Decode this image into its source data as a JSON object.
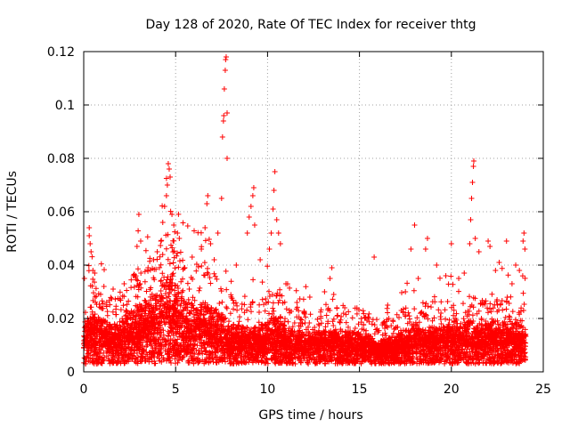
{
  "chart_data": {
    "type": "scatter",
    "title": "Day 128 of 2020, Rate Of TEC Index for receiver thtg",
    "xlabel": "GPS time / hours",
    "ylabel": "ROTI / TECUs",
    "xlim": [
      0,
      25
    ],
    "ylim": [
      0,
      0.12
    ],
    "xticks": [
      0,
      5,
      10,
      15,
      20,
      25
    ],
    "yticks": [
      0,
      0.02,
      0.04,
      0.06,
      0.08,
      0.1,
      0.12
    ],
    "xtick_labels": [
      "0",
      "5",
      "10",
      "15",
      "20",
      "25"
    ],
    "ytick_labels": [
      "0",
      "0.02",
      "0.04",
      "0.06",
      "0.08",
      "0.1",
      "0.12"
    ],
    "grid": true,
    "marker": "plus",
    "color": "#ff0000",
    "series": [
      {
        "name": "ROTI",
        "base_profile": [
          [
            0.0,
            0.012
          ],
          [
            0.5,
            0.016
          ],
          [
            1.0,
            0.014
          ],
          [
            1.5,
            0.013
          ],
          [
            2.0,
            0.014
          ],
          [
            2.5,
            0.016
          ],
          [
            3.0,
            0.018
          ],
          [
            3.5,
            0.019
          ],
          [
            4.0,
            0.021
          ],
          [
            4.5,
            0.026
          ],
          [
            5.0,
            0.024
          ],
          [
            5.5,
            0.019
          ],
          [
            6.0,
            0.018
          ],
          [
            6.5,
            0.019
          ],
          [
            7.0,
            0.017
          ],
          [
            7.5,
            0.016
          ],
          [
            8.0,
            0.013
          ],
          [
            8.5,
            0.012
          ],
          [
            9.0,
            0.012
          ],
          [
            9.5,
            0.012
          ],
          [
            10.0,
            0.014
          ],
          [
            10.5,
            0.015
          ],
          [
            11.0,
            0.012
          ],
          [
            11.5,
            0.011
          ],
          [
            12.0,
            0.011
          ],
          [
            13.0,
            0.011
          ],
          [
            14.0,
            0.011
          ],
          [
            15.0,
            0.011
          ],
          [
            15.5,
            0.01
          ],
          [
            16.0,
            0.008
          ],
          [
            16.5,
            0.009
          ],
          [
            17.0,
            0.01
          ],
          [
            17.5,
            0.011
          ],
          [
            18.0,
            0.013
          ],
          [
            18.5,
            0.012
          ],
          [
            19.0,
            0.012
          ],
          [
            19.5,
            0.012
          ],
          [
            20.0,
            0.012
          ],
          [
            20.5,
            0.013
          ],
          [
            21.0,
            0.014
          ],
          [
            21.5,
            0.013
          ],
          [
            22.0,
            0.013
          ],
          [
            22.5,
            0.014
          ],
          [
            23.0,
            0.013
          ],
          [
            23.5,
            0.013
          ],
          [
            24.0,
            0.012
          ]
        ],
        "spikes": [
          {
            "x": 0.3,
            "y": 0.054
          },
          {
            "x": 0.3,
            "y": 0.051
          },
          {
            "x": 0.35,
            "y": 0.048
          },
          {
            "x": 0.4,
            "y": 0.045
          },
          {
            "x": 0.5,
            "y": 0.038
          },
          {
            "x": 0.6,
            "y": 0.037
          },
          {
            "x": 1.1,
            "y": 0.032
          },
          {
            "x": 1.6,
            "y": 0.031
          },
          {
            "x": 2.2,
            "y": 0.033
          },
          {
            "x": 2.7,
            "y": 0.036
          },
          {
            "x": 2.9,
            "y": 0.047
          },
          {
            "x": 3.0,
            "y": 0.059
          },
          {
            "x": 3.1,
            "y": 0.049
          },
          {
            "x": 3.5,
            "y": 0.039
          },
          {
            "x": 3.8,
            "y": 0.042
          },
          {
            "x": 4.0,
            "y": 0.045
          },
          {
            "x": 4.2,
            "y": 0.049
          },
          {
            "x": 4.3,
            "y": 0.056
          },
          {
            "x": 4.4,
            "y": 0.062
          },
          {
            "x": 4.5,
            "y": 0.066
          },
          {
            "x": 4.55,
            "y": 0.07
          },
          {
            "x": 4.6,
            "y": 0.078
          },
          {
            "x": 4.65,
            "y": 0.076
          },
          {
            "x": 4.7,
            "y": 0.073
          },
          {
            "x": 4.8,
            "y": 0.059
          },
          {
            "x": 4.9,
            "y": 0.055
          },
          {
            "x": 5.1,
            "y": 0.052
          },
          {
            "x": 5.2,
            "y": 0.05
          },
          {
            "x": 5.5,
            "y": 0.039
          },
          {
            "x": 5.9,
            "y": 0.043
          },
          {
            "x": 6.4,
            "y": 0.046
          },
          {
            "x": 6.6,
            "y": 0.054
          },
          {
            "x": 6.7,
            "y": 0.063
          },
          {
            "x": 6.75,
            "y": 0.066
          },
          {
            "x": 6.9,
            "y": 0.048
          },
          {
            "x": 7.1,
            "y": 0.042
          },
          {
            "x": 7.3,
            "y": 0.052
          },
          {
            "x": 7.5,
            "y": 0.065
          },
          {
            "x": 7.55,
            "y": 0.088
          },
          {
            "x": 7.6,
            "y": 0.094
          },
          {
            "x": 7.62,
            "y": 0.096
          },
          {
            "x": 7.65,
            "y": 0.106
          },
          {
            "x": 7.7,
            "y": 0.113
          },
          {
            "x": 7.72,
            "y": 0.117
          },
          {
            "x": 7.75,
            "y": 0.118
          },
          {
            "x": 7.8,
            "y": 0.097
          },
          {
            "x": 7.8,
            "y": 0.08
          },
          {
            "x": 8.3,
            "y": 0.04
          },
          {
            "x": 8.9,
            "y": 0.052
          },
          {
            "x": 9.0,
            "y": 0.058
          },
          {
            "x": 9.1,
            "y": 0.062
          },
          {
            "x": 9.2,
            "y": 0.066
          },
          {
            "x": 9.25,
            "y": 0.069
          },
          {
            "x": 9.3,
            "y": 0.055
          },
          {
            "x": 9.6,
            "y": 0.042
          },
          {
            "x": 10.1,
            "y": 0.046
          },
          {
            "x": 10.2,
            "y": 0.052
          },
          {
            "x": 10.3,
            "y": 0.061
          },
          {
            "x": 10.35,
            "y": 0.068
          },
          {
            "x": 10.4,
            "y": 0.075
          },
          {
            "x": 10.5,
            "y": 0.057
          },
          {
            "x": 10.6,
            "y": 0.052
          },
          {
            "x": 10.7,
            "y": 0.048
          },
          {
            "x": 11.0,
            "y": 0.033
          },
          {
            "x": 11.6,
            "y": 0.026
          },
          {
            "x": 12.3,
            "y": 0.028
          },
          {
            "x": 13.1,
            "y": 0.03
          },
          {
            "x": 13.4,
            "y": 0.035
          },
          {
            "x": 13.5,
            "y": 0.039
          },
          {
            "x": 13.6,
            "y": 0.029
          },
          {
            "x": 14.2,
            "y": 0.024
          },
          {
            "x": 15.1,
            "y": 0.02
          },
          {
            "x": 15.8,
            "y": 0.043
          },
          {
            "x": 16.6,
            "y": 0.02
          },
          {
            "x": 17.5,
            "y": 0.03
          },
          {
            "x": 17.8,
            "y": 0.046
          },
          {
            "x": 18.0,
            "y": 0.055
          },
          {
            "x": 18.2,
            "y": 0.035
          },
          {
            "x": 18.6,
            "y": 0.046
          },
          {
            "x": 18.7,
            "y": 0.05
          },
          {
            "x": 19.2,
            "y": 0.04
          },
          {
            "x": 19.7,
            "y": 0.036
          },
          {
            "x": 20.0,
            "y": 0.048
          },
          {
            "x": 20.4,
            "y": 0.035
          },
          {
            "x": 20.7,
            "y": 0.037
          },
          {
            "x": 21.0,
            "y": 0.048
          },
          {
            "x": 21.05,
            "y": 0.057
          },
          {
            "x": 21.1,
            "y": 0.065
          },
          {
            "x": 21.15,
            "y": 0.071
          },
          {
            "x": 21.2,
            "y": 0.077
          },
          {
            "x": 21.22,
            "y": 0.079
          },
          {
            "x": 21.3,
            "y": 0.05
          },
          {
            "x": 21.5,
            "y": 0.045
          },
          {
            "x": 22.0,
            "y": 0.049
          },
          {
            "x": 22.1,
            "y": 0.047
          },
          {
            "x": 22.4,
            "y": 0.038
          },
          {
            "x": 22.6,
            "y": 0.041
          },
          {
            "x": 23.0,
            "y": 0.049
          },
          {
            "x": 23.3,
            "y": 0.033
          },
          {
            "x": 23.5,
            "y": 0.04
          },
          {
            "x": 23.7,
            "y": 0.038
          },
          {
            "x": 23.9,
            "y": 0.049
          },
          {
            "x": 23.95,
            "y": 0.052
          },
          {
            "x": 24.0,
            "y": 0.046
          }
        ]
      }
    ]
  }
}
